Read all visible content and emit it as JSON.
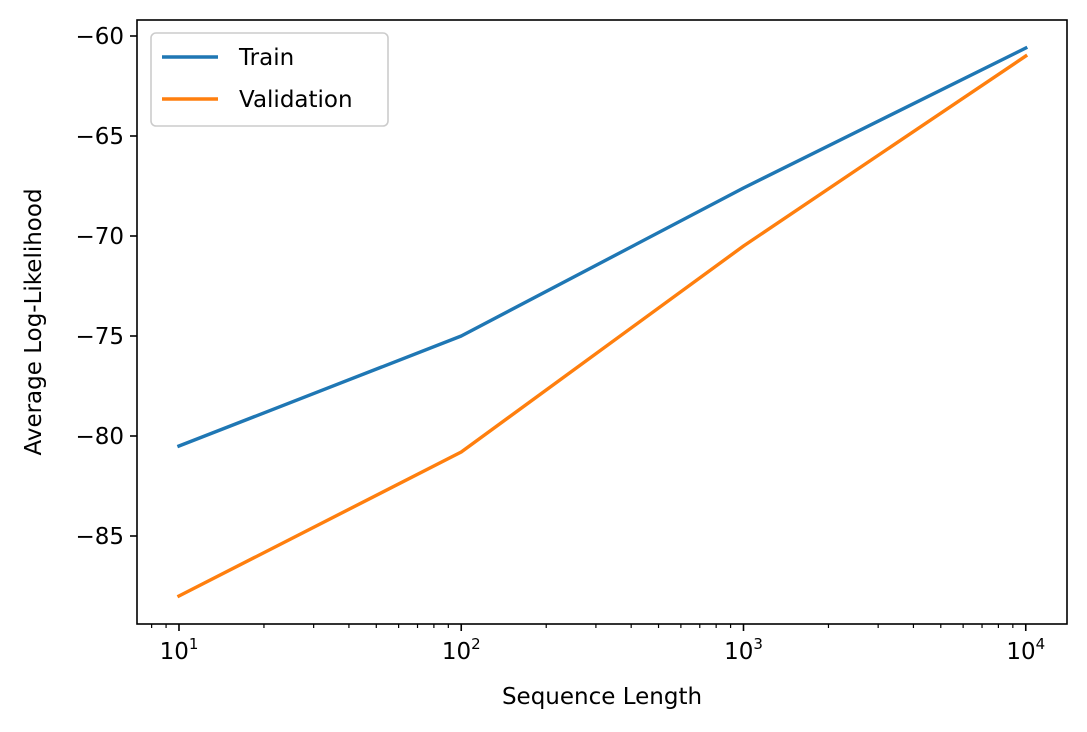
{
  "chart_data": {
    "type": "line",
    "title": "",
    "xlabel": "Sequence Length",
    "ylabel": "Average Log-Likelihood",
    "x_scale": "log",
    "x": [
      10,
      100,
      1000,
      10000
    ],
    "x_ticks": [
      {
        "value": 10,
        "base": "10",
        "exp": "1"
      },
      {
        "value": 100,
        "base": "10",
        "exp": "2"
      },
      {
        "value": 1000,
        "base": "10",
        "exp": "3"
      },
      {
        "value": 10000,
        "base": "10",
        "exp": "4"
      }
    ],
    "y_ticks": [
      -60,
      -65,
      -70,
      -75,
      -80,
      -85
    ],
    "y_tick_labels": [
      "−60",
      "−65",
      "−70",
      "−75",
      "−80",
      "−85"
    ],
    "xlim": [
      7.1,
      14000
    ],
    "ylim": [
      -89.4,
      -59.2
    ],
    "series": [
      {
        "name": "Train",
        "color": "#1f77b4",
        "values": [
          -80.5,
          -75.0,
          -67.6,
          -60.6
        ]
      },
      {
        "name": "Validation",
        "color": "#ff7f0e",
        "values": [
          -88.0,
          -80.8,
          -70.5,
          -61.0
        ]
      }
    ],
    "legend": {
      "position": "top-left",
      "entries": [
        "Train",
        "Validation"
      ]
    },
    "grid": false
  }
}
